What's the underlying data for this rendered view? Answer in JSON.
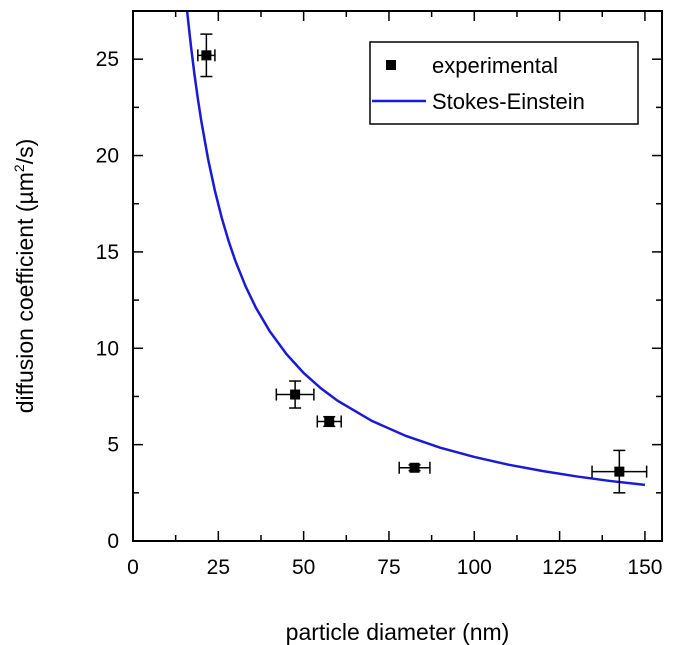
{
  "chart_data": {
    "type": "scatter",
    "xlabel": "particle diameter (nm)",
    "ylabel": {
      "prefix": "diffusion coefficient (µm",
      "sup": "2",
      "suffix": "/s)"
    },
    "xlim": [
      0,
      155
    ],
    "ylim": [
      0,
      27.5
    ],
    "xticks": [
      0,
      25,
      50,
      75,
      100,
      125,
      150
    ],
    "yticks": [
      0,
      5,
      10,
      15,
      20,
      25
    ],
    "grid": false,
    "legend_position": "top-right",
    "series": [
      {
        "name": "experimental",
        "type": "scatter",
        "color": "#000000",
        "marker": "square",
        "points": [
          {
            "x": 21.5,
            "y": 25.2,
            "xerr": 2.5,
            "yerr": 1.1
          },
          {
            "x": 47.5,
            "y": 7.6,
            "xerr": 5.5,
            "yerr": 0.7
          },
          {
            "x": 57.5,
            "y": 6.2,
            "xerr": 3.5,
            "yerr": 0.25
          },
          {
            "x": 82.5,
            "y": 3.8,
            "xerr": 4.5,
            "yerr": 0.15
          },
          {
            "x": 142.5,
            "y": 3.6,
            "xerr": 8,
            "yerr": 1.1
          }
        ]
      },
      {
        "name": "Stokes-Einstein",
        "type": "line",
        "color": "#1a1ad6",
        "x": [
          15.3,
          16,
          17,
          18,
          19,
          20,
          22,
          24,
          26,
          28,
          30,
          33,
          36,
          40,
          45,
          50,
          55,
          60,
          70,
          80,
          90,
          100,
          110,
          120,
          130,
          140,
          150
        ],
        "y": [
          28.5,
          27.25,
          25.65,
          24.22,
          22.95,
          21.8,
          19.82,
          18.17,
          16.77,
          15.57,
          14.53,
          13.21,
          12.11,
          10.9,
          9.69,
          8.72,
          7.93,
          7.27,
          6.23,
          5.45,
          4.84,
          4.36,
          3.96,
          3.63,
          3.35,
          3.11,
          2.91
        ]
      }
    ]
  }
}
